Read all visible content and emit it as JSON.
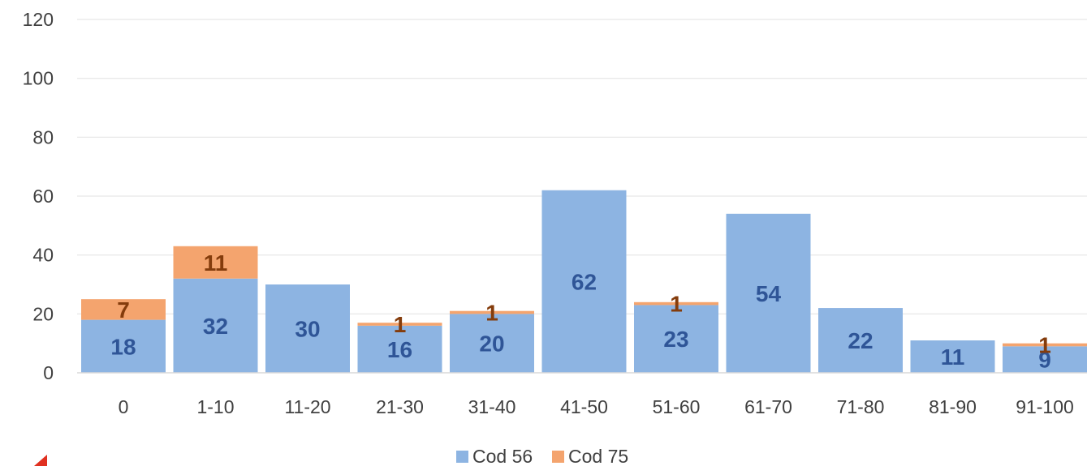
{
  "chart_data": {
    "type": "bar",
    "stacked": true,
    "categories": [
      "0",
      "1-10",
      "11-20",
      "21-30",
      "31-40",
      "41-50",
      "51-60",
      "61-70",
      "71-80",
      "81-90",
      "91-100"
    ],
    "series": [
      {
        "name": "Cod 56",
        "color": "#8DB4E2",
        "label_color": "#2F5597",
        "values": [
          18,
          32,
          30,
          16,
          20,
          62,
          23,
          54,
          22,
          11,
          9
        ]
      },
      {
        "name": "Cod 75",
        "color": "#F4A46E",
        "label_color": "#843C0C",
        "values": [
          7,
          11,
          0,
          1,
          1,
          0,
          1,
          0,
          0,
          0,
          1
        ]
      }
    ],
    "y_ticks": [
      "0",
      "20",
      "40",
      "60",
      "80",
      "100",
      "120"
    ],
    "ylim": [
      0,
      120
    ],
    "grid": true,
    "legend_position": "bottom",
    "title": "",
    "xlabel": "",
    "ylabel": ""
  }
}
